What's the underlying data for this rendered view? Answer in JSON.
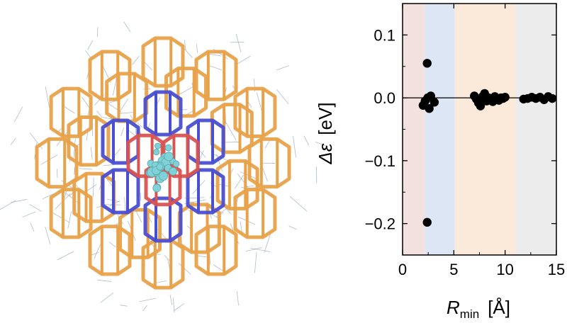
{
  "image": {
    "left_panel": "molecular-cluster-rendering",
    "colors": {
      "outer_shell": "#e8a24a",
      "middle_shell": "#4a4fd0",
      "inner_shell": "#d9534f",
      "molecule": "#7fd3d8",
      "background_wire": "#8fa0b0"
    }
  },
  "chart_data": {
    "type": "scatter",
    "xlabel_main": "R",
    "xlabel_sub": "min",
    "xlabel_unit": "[Å]",
    "ylabel_main": "Δε",
    "ylabel_unit": "[eV]",
    "xlim": [
      0,
      15
    ],
    "ylim": [
      -0.25,
      0.15
    ],
    "xticks": [
      0,
      5,
      10,
      15
    ],
    "xtick_labels": [
      "0",
      "5",
      "10",
      "15"
    ],
    "yticks": [
      0.1,
      0.0,
      -0.1,
      -0.2
    ],
    "ytick_labels": [
      "0.1",
      "0.0",
      "−0.1",
      "−0.2"
    ],
    "zero_line": true,
    "grid": false,
    "regions": [
      {
        "x": [
          0,
          2.2
        ],
        "color": "#f3e1df"
      },
      {
        "x": [
          2.2,
          5.1
        ],
        "color": "#dde6f5"
      },
      {
        "x": [
          5.1,
          11.0
        ],
        "color": "#fbe9d9"
      },
      {
        "x": [
          11.0,
          15
        ],
        "color": "#ececec"
      }
    ],
    "points": [
      {
        "x": 2.4,
        "y": 0.055
      },
      {
        "x": 2.0,
        "y": -0.012
      },
      {
        "x": 2.2,
        "y": -0.005
      },
      {
        "x": 2.45,
        "y": 0.0
      },
      {
        "x": 2.6,
        "y": -0.017
      },
      {
        "x": 2.75,
        "y": 0.003
      },
      {
        "x": 3.1,
        "y": -0.007
      },
      {
        "x": 2.4,
        "y": -0.198
      },
      {
        "x": 7.0,
        "y": 0.003
      },
      {
        "x": 7.2,
        "y": -0.002
      },
      {
        "x": 7.4,
        "y": -0.008
      },
      {
        "x": 7.6,
        "y": -0.013
      },
      {
        "x": 7.8,
        "y": 0.002
      },
      {
        "x": 8.0,
        "y": 0.007
      },
      {
        "x": 8.2,
        "y": -0.005
      },
      {
        "x": 8.4,
        "y": 0.0
      },
      {
        "x": 8.6,
        "y": -0.003
      },
      {
        "x": 8.8,
        "y": -0.006
      },
      {
        "x": 9.0,
        "y": 0.002
      },
      {
        "x": 9.2,
        "y": -0.002
      },
      {
        "x": 9.4,
        "y": -0.004
      },
      {
        "x": 9.6,
        "y": 0.0
      },
      {
        "x": 9.8,
        "y": -0.001
      },
      {
        "x": 10.0,
        "y": 0.001
      },
      {
        "x": 11.8,
        "y": -0.002
      },
      {
        "x": 12.2,
        "y": -0.001
      },
      {
        "x": 12.6,
        "y": 0.001
      },
      {
        "x": 13.0,
        "y": -0.001
      },
      {
        "x": 13.4,
        "y": 0.001
      },
      {
        "x": 13.8,
        "y": -0.003
      },
      {
        "x": 14.2,
        "y": 0.002
      },
      {
        "x": 14.6,
        "y": -0.001
      }
    ]
  }
}
